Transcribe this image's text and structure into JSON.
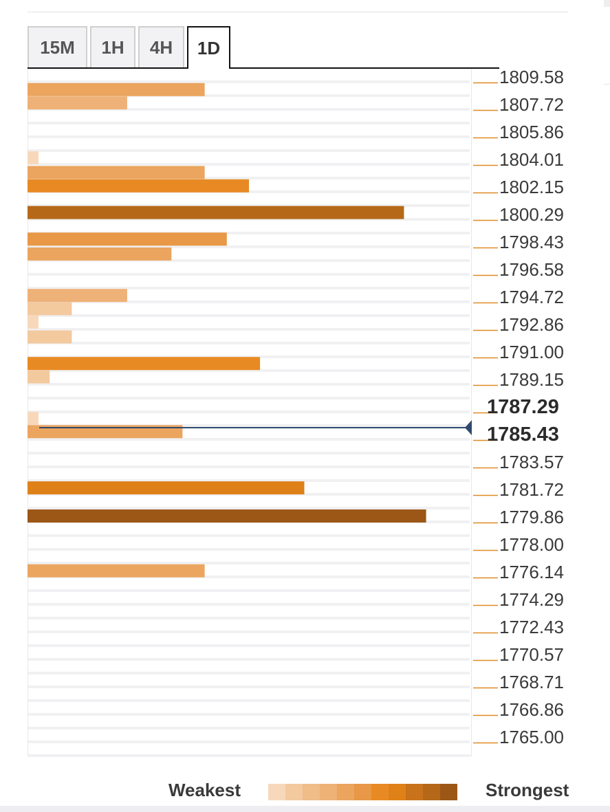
{
  "tabs": [
    {
      "label": "15M",
      "active": false
    },
    {
      "label": "1H",
      "active": false
    },
    {
      "label": "4H",
      "active": false
    },
    {
      "label": "1D",
      "active": true
    }
  ],
  "legend": {
    "weakest_label": "Weakest",
    "strongest_label": "Strongest",
    "scale_colors": [
      "#f8d8bb",
      "#f3c99e",
      "#f0bc88",
      "#eeb177",
      "#eba55f",
      "#e89846",
      "#e88a24",
      "#de8119",
      "#c8731b",
      "#b56818",
      "#9c5716"
    ]
  },
  "chart_data": {
    "type": "bar",
    "orientation": "horizontal",
    "ticks": [
      "1809.58",
      "1807.72",
      "1805.86",
      "1804.01",
      "1802.15",
      "1800.29",
      "1798.43",
      "1796.58",
      "1794.72",
      "1792.86",
      "1791.00",
      "1789.15",
      "1787.29",
      "1785.43",
      "1783.57",
      "1781.72",
      "1779.86",
      "1778.00",
      "1776.14",
      "1774.29",
      "1772.43",
      "1770.57",
      "1768.71",
      "1766.86",
      "1765.00"
    ],
    "current_price": 1786.27,
    "current_price_bracket": [
      "1787.29",
      "1785.43"
    ],
    "max_strength": 10,
    "bars": [
      {
        "level": 1809.1,
        "strength": 4,
        "intensity": 4
      },
      {
        "level": 1808.2,
        "strength": 2.25,
        "intensity": 3
      },
      {
        "level": 1804.5,
        "strength": 0.25,
        "intensity": 0
      },
      {
        "level": 1803.5,
        "strength": 4,
        "intensity": 4
      },
      {
        "level": 1802.6,
        "strength": 5,
        "intensity": 6
      },
      {
        "level": 1800.8,
        "strength": 8.5,
        "intensity": 9
      },
      {
        "level": 1799.0,
        "strength": 4.5,
        "intensity": 5
      },
      {
        "level": 1798.0,
        "strength": 3.25,
        "intensity": 4
      },
      {
        "level": 1795.2,
        "strength": 2.25,
        "intensity": 3
      },
      {
        "level": 1794.3,
        "strength": 1,
        "intensity": 1
      },
      {
        "level": 1793.4,
        "strength": 0.25,
        "intensity": 0
      },
      {
        "level": 1792.4,
        "strength": 1,
        "intensity": 1
      },
      {
        "level": 1790.6,
        "strength": 5.25,
        "intensity": 6
      },
      {
        "level": 1789.7,
        "strength": 0.5,
        "intensity": 1
      },
      {
        "level": 1786.9,
        "strength": 0.25,
        "intensity": 0
      },
      {
        "level": 1786.0,
        "strength": 3.5,
        "intensity": 4
      },
      {
        "level": 1782.2,
        "strength": 6.25,
        "intensity": 7
      },
      {
        "level": 1780.3,
        "strength": 9,
        "intensity": 10
      },
      {
        "level": 1776.6,
        "strength": 4,
        "intensity": 4
      }
    ]
  }
}
